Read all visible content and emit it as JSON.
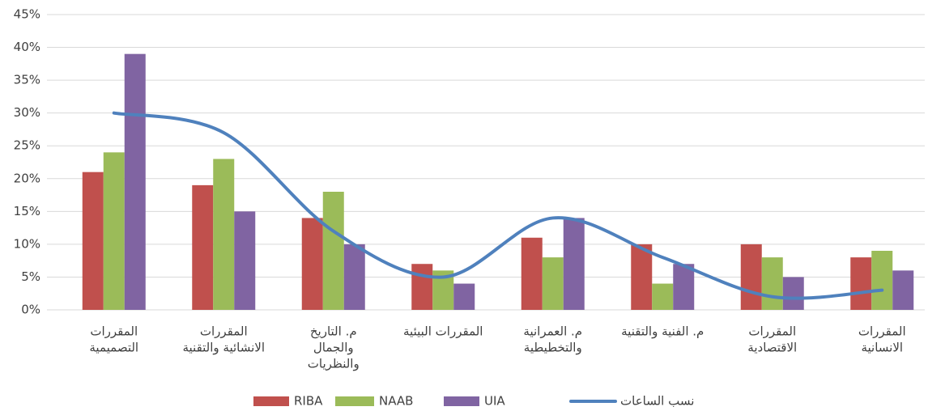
{
  "chart_data": {
    "type": "bar",
    "categories": [
      [
        "المقررات",
        "التصميمية"
      ],
      [
        "المقررات",
        "الانشائية والتقنية"
      ],
      [
        "م. التاريخ",
        "والجمال",
        "والنظريات"
      ],
      [
        "المقررات البيئية"
      ],
      [
        "م. العمرانية",
        "والتخطيطية"
      ],
      [
        "م. الفنية والتقنية"
      ],
      [
        "المقررات",
        "الاقتصادية"
      ],
      [
        "المقررات",
        "الانسانية"
      ]
    ],
    "series": [
      {
        "name": "RIBA",
        "color": "#c0504d",
        "values": [
          21,
          19,
          14,
          7,
          11,
          10,
          10,
          8
        ]
      },
      {
        "name": "NAAB",
        "color": "#9bbb59",
        "values": [
          24,
          23,
          18,
          6,
          8,
          4,
          8,
          9
        ]
      },
      {
        "name": "UIA",
        "color": "#8064a2",
        "values": [
          39,
          15,
          10,
          4,
          14,
          7,
          5,
          6
        ]
      },
      {
        "name": "نسب الساعات",
        "color": "#4f81bd",
        "type": "line",
        "smooth": true,
        "values": [
          30,
          27,
          12,
          5,
          14,
          8,
          2,
          3
        ]
      }
    ],
    "ylim": [
      0,
      45
    ],
    "yticks": [
      {
        "value": 0,
        "label": "0%"
      },
      {
        "value": 5,
        "label": "5%"
      },
      {
        "value": 10,
        "label": "10%"
      },
      {
        "value": 15,
        "label": "15%"
      },
      {
        "value": 20,
        "label": "20%"
      },
      {
        "value": 25,
        "label": "25%"
      },
      {
        "value": 30,
        "label": "30%"
      },
      {
        "value": 35,
        "label": "35%"
      },
      {
        "value": 40,
        "label": "40%"
      },
      {
        "value": 45,
        "label": "45%"
      }
    ],
    "grid": true,
    "legend": "bottom"
  }
}
